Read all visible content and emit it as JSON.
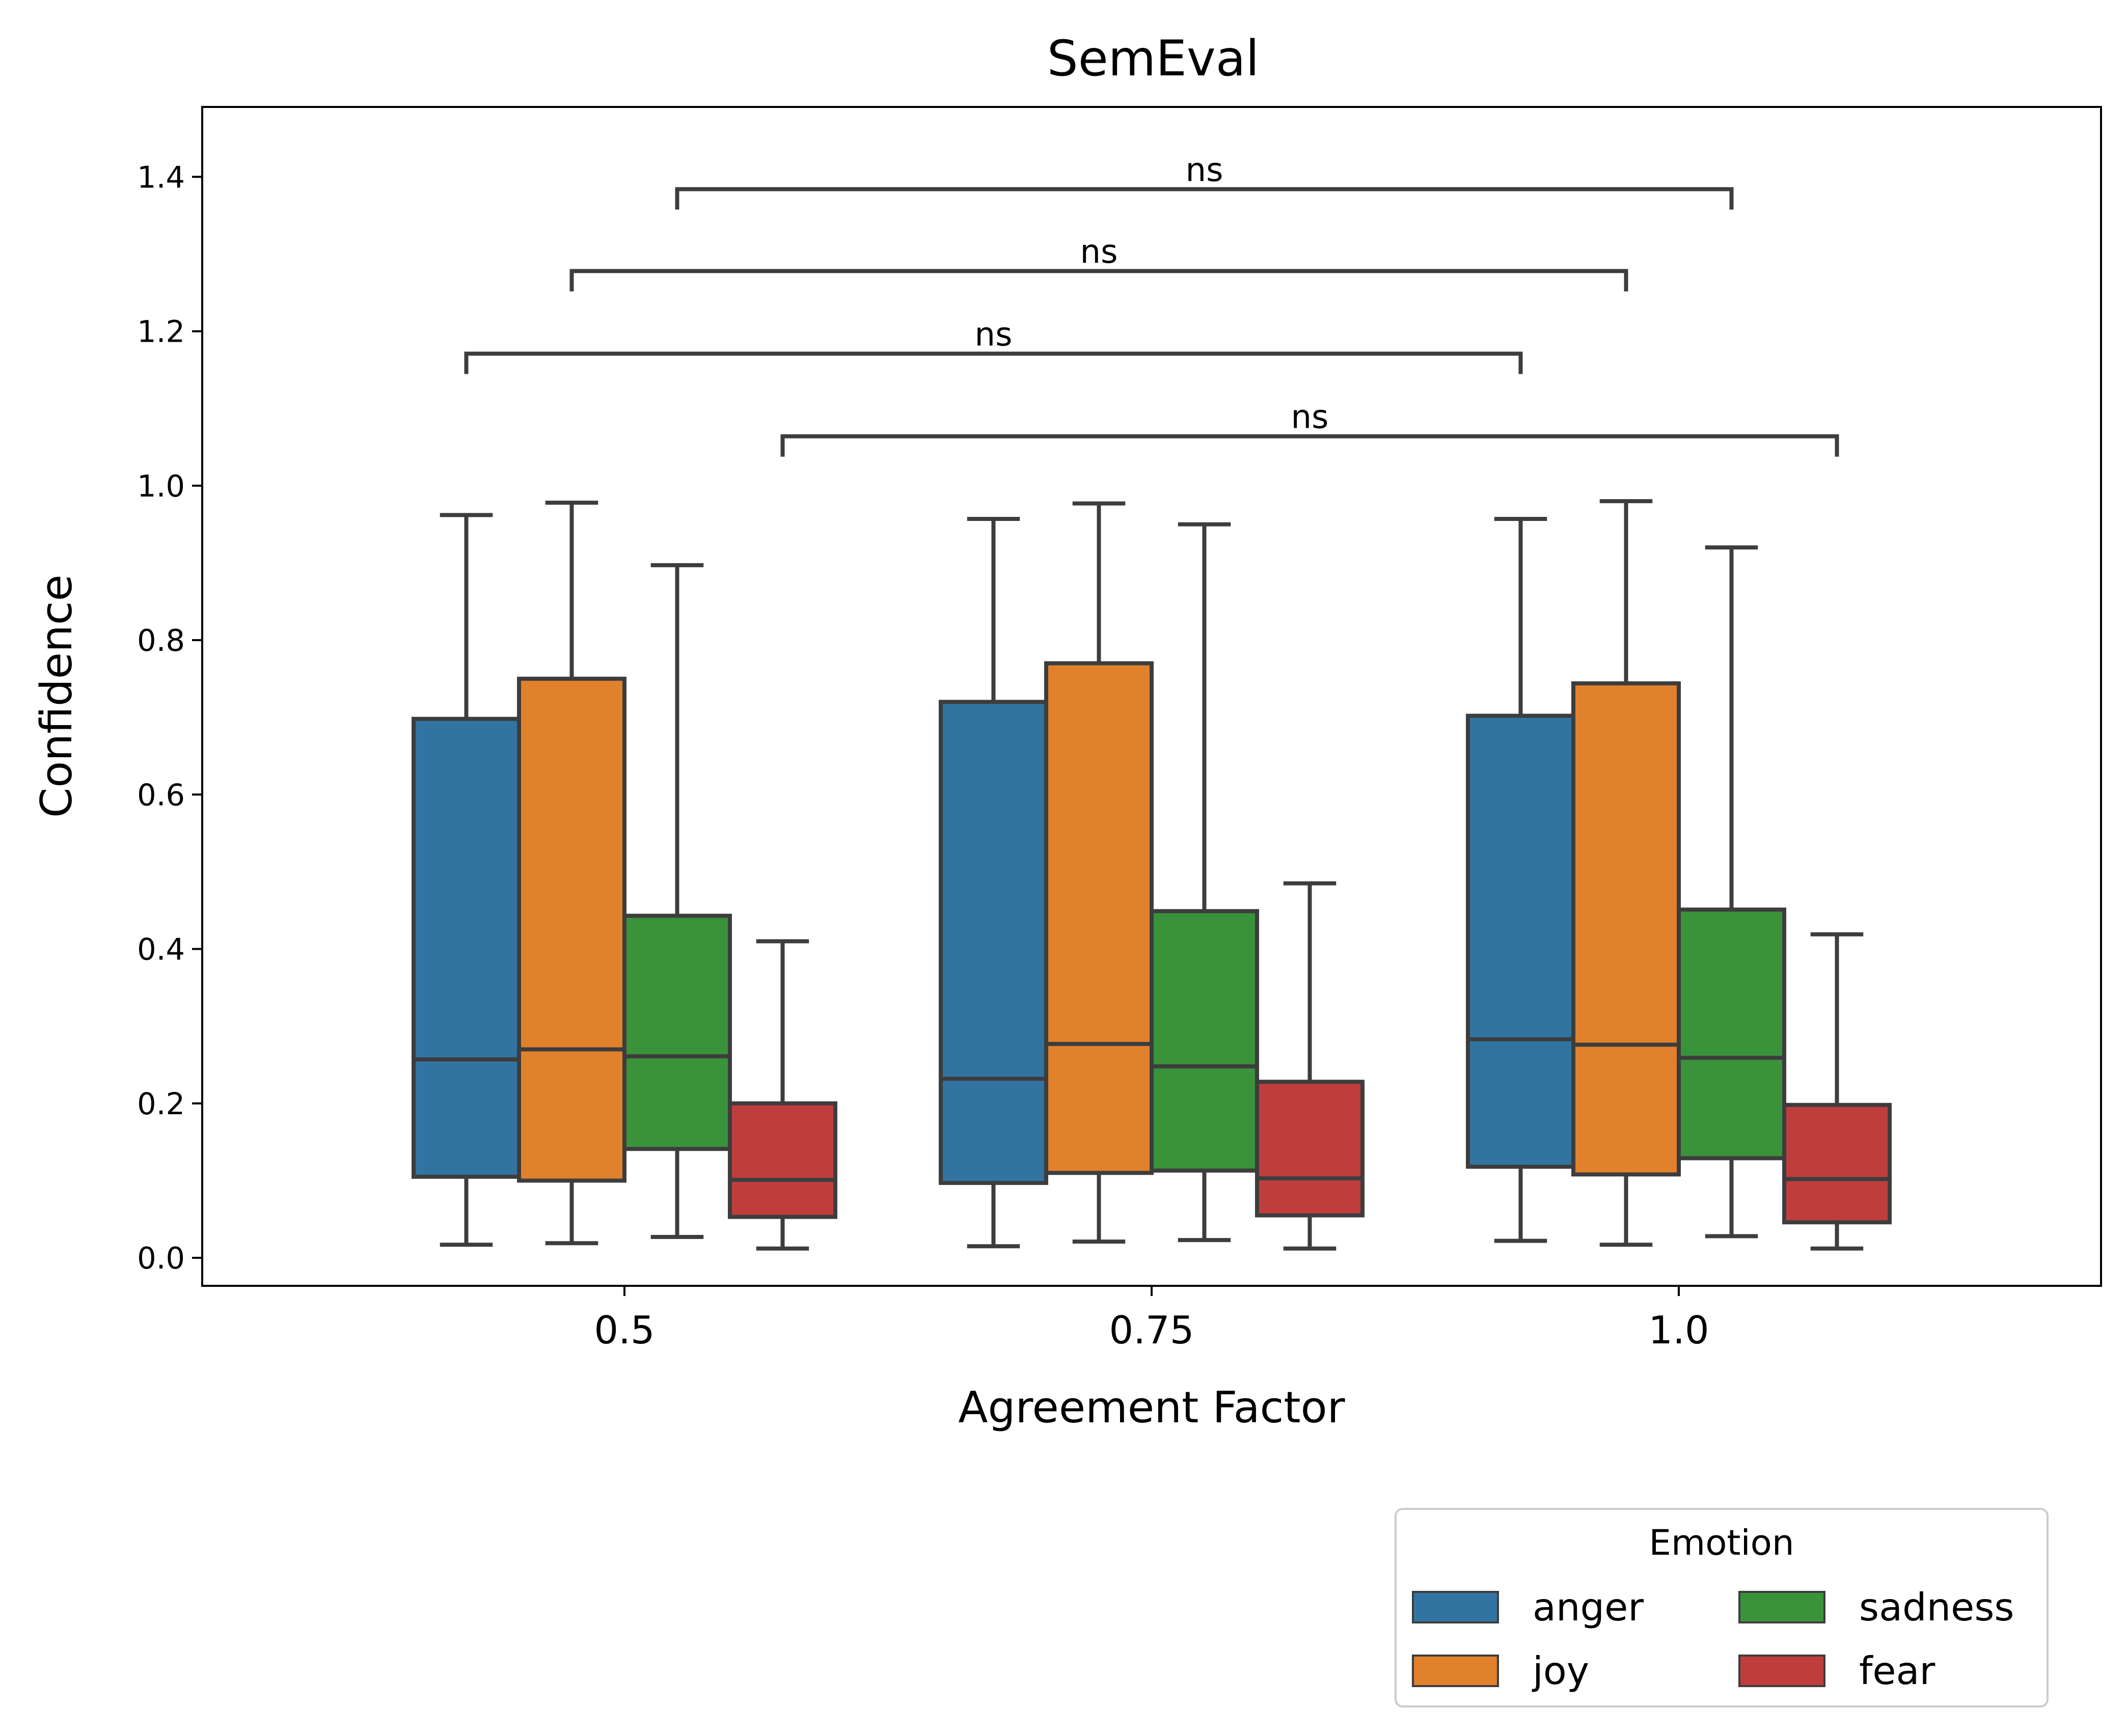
{
  "chart_data": {
    "type": "box",
    "title": "SemEval",
    "xlabel": "Agreement Factor",
    "ylabel": "Confidence",
    "ylim": [
      -0.04,
      1.49
    ],
    "yticks": [
      "0.0",
      "0.2",
      "0.4",
      "0.6",
      "0.8",
      "1.0",
      "1.2",
      "1.4"
    ],
    "categories": [
      "0.5",
      "0.75",
      "1.0"
    ],
    "grid": false,
    "legend": {
      "title": "Emotion",
      "placement": "bottom-right, below axes",
      "columns": 2
    },
    "series": [
      {
        "name": "anger",
        "color": "#3274a1",
        "boxes": [
          {
            "whislo": 0.017,
            "q1": 0.105,
            "med": 0.257,
            "q3": 0.698,
            "whishi": 0.962
          },
          {
            "whislo": 0.015,
            "q1": 0.097,
            "med": 0.232,
            "q3": 0.72,
            "whishi": 0.957
          },
          {
            "whislo": 0.022,
            "q1": 0.118,
            "med": 0.283,
            "q3": 0.702,
            "whishi": 0.957
          }
        ]
      },
      {
        "name": "joy",
        "color": "#e1812c",
        "boxes": [
          {
            "whislo": 0.019,
            "q1": 0.1,
            "med": 0.27,
            "q3": 0.75,
            "whishi": 0.978
          },
          {
            "whislo": 0.021,
            "q1": 0.11,
            "med": 0.277,
            "q3": 0.77,
            "whishi": 0.977
          },
          {
            "whislo": 0.017,
            "q1": 0.108,
            "med": 0.276,
            "q3": 0.744,
            "whishi": 0.98
          }
        ]
      },
      {
        "name": "sadness",
        "color": "#3a923a",
        "boxes": [
          {
            "whislo": 0.027,
            "q1": 0.141,
            "med": 0.261,
            "q3": 0.443,
            "whishi": 0.897
          },
          {
            "whislo": 0.023,
            "q1": 0.113,
            "med": 0.248,
            "q3": 0.449,
            "whishi": 0.95
          },
          {
            "whislo": 0.028,
            "q1": 0.129,
            "med": 0.259,
            "q3": 0.451,
            "whishi": 0.92
          }
        ]
      },
      {
        "name": "fear",
        "color": "#c03d3e",
        "boxes": [
          {
            "whislo": 0.012,
            "q1": 0.053,
            "med": 0.101,
            "q3": 0.2,
            "whishi": 0.41
          },
          {
            "whislo": 0.012,
            "q1": 0.055,
            "med": 0.103,
            "q3": 0.228,
            "whishi": 0.485
          },
          {
            "whislo": 0.012,
            "q1": 0.046,
            "med": 0.102,
            "q3": 0.198,
            "whishi": 0.419
          }
        ]
      }
    ],
    "annotations": [
      {
        "text": "ns",
        "from": {
          "category": "0.5",
          "series": "sadness"
        },
        "to": {
          "category": "1.0",
          "series": "sadness"
        },
        "level": 1.384
      },
      {
        "text": "ns",
        "from": {
          "category": "0.5",
          "series": "joy"
        },
        "to": {
          "category": "1.0",
          "series": "joy"
        },
        "level": 1.278
      },
      {
        "text": "ns",
        "from": {
          "category": "0.5",
          "series": "anger"
        },
        "to": {
          "category": "1.0",
          "series": "anger"
        },
        "level": 1.171
      },
      {
        "text": "ns",
        "from": {
          "category": "0.5",
          "series": "fear"
        },
        "to": {
          "category": "1.0",
          "series": "fear"
        },
        "level": 1.064
      }
    ]
  }
}
